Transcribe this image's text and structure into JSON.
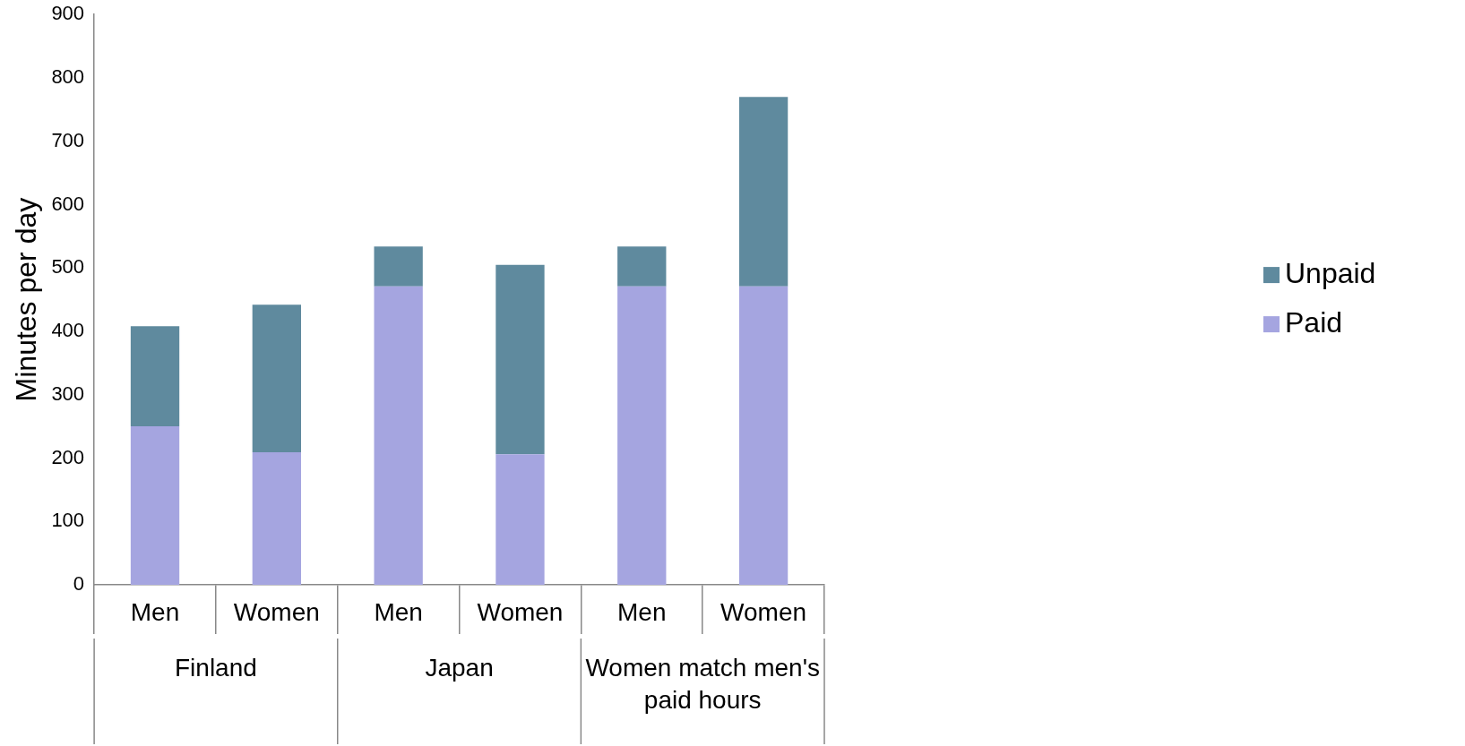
{
  "chart_data": {
    "type": "bar",
    "stacked": true,
    "ylabel": "Minutes per day",
    "categories": [
      "Men",
      "Women",
      "Men",
      "Women",
      "Men",
      "Women"
    ],
    "annotations": [
      "Finland",
      "Japan",
      "Women match men's paid hours"
    ],
    "series": [
      {
        "name": "Paid",
        "color": "#a5a5e0",
        "values": [
          250,
          209,
          471,
          206,
          471,
          471
        ]
      },
      {
        "name": "Unpaid",
        "color": "#5f8a9e",
        "values": [
          158,
          233,
          63,
          299,
          63,
          299
        ]
      }
    ],
    "ylim": [
      0,
      900
    ],
    "yticks": [
      0,
      100,
      200,
      300,
      400,
      500,
      600,
      700,
      800,
      900
    ],
    "grid": false,
    "legend": "right"
  }
}
